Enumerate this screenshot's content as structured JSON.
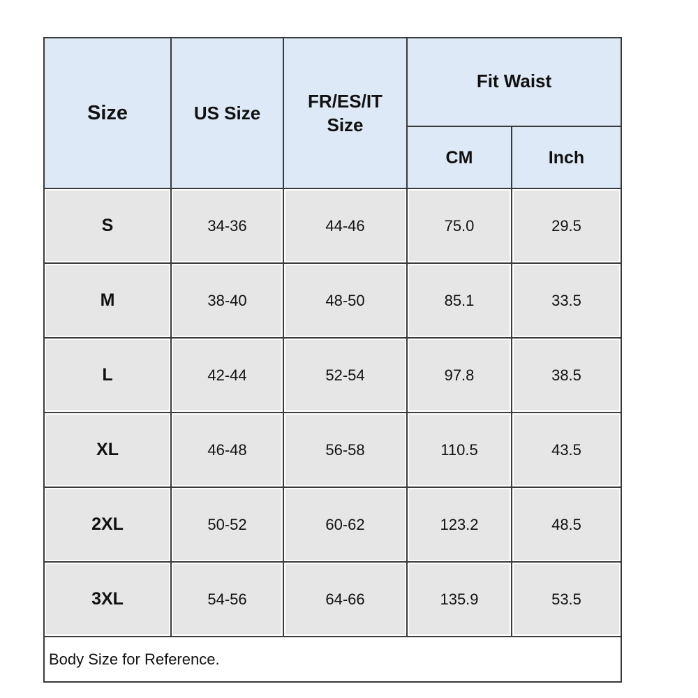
{
  "header": {
    "size": "Size",
    "us_size": "US Size",
    "fr_size": "FR/ES/IT Size",
    "fit_waist": "Fit Waist",
    "cm": "CM",
    "inch": "Inch"
  },
  "rows": [
    [
      "S",
      "34-36",
      "44-46",
      "75.0",
      "29.5"
    ],
    [
      "M",
      "38-40",
      "48-50",
      "85.1",
      "33.5"
    ],
    [
      "L",
      "42-44",
      "52-54",
      "97.8",
      "38.5"
    ],
    [
      "XL",
      "46-48",
      "56-58",
      "110.5",
      "43.5"
    ],
    [
      "2XL",
      "50-52",
      "60-62",
      "123.2",
      "48.5"
    ],
    [
      "3XL",
      "54-56",
      "64-66",
      "135.9",
      "53.5"
    ]
  ],
  "note": "Body Size for Reference."
}
